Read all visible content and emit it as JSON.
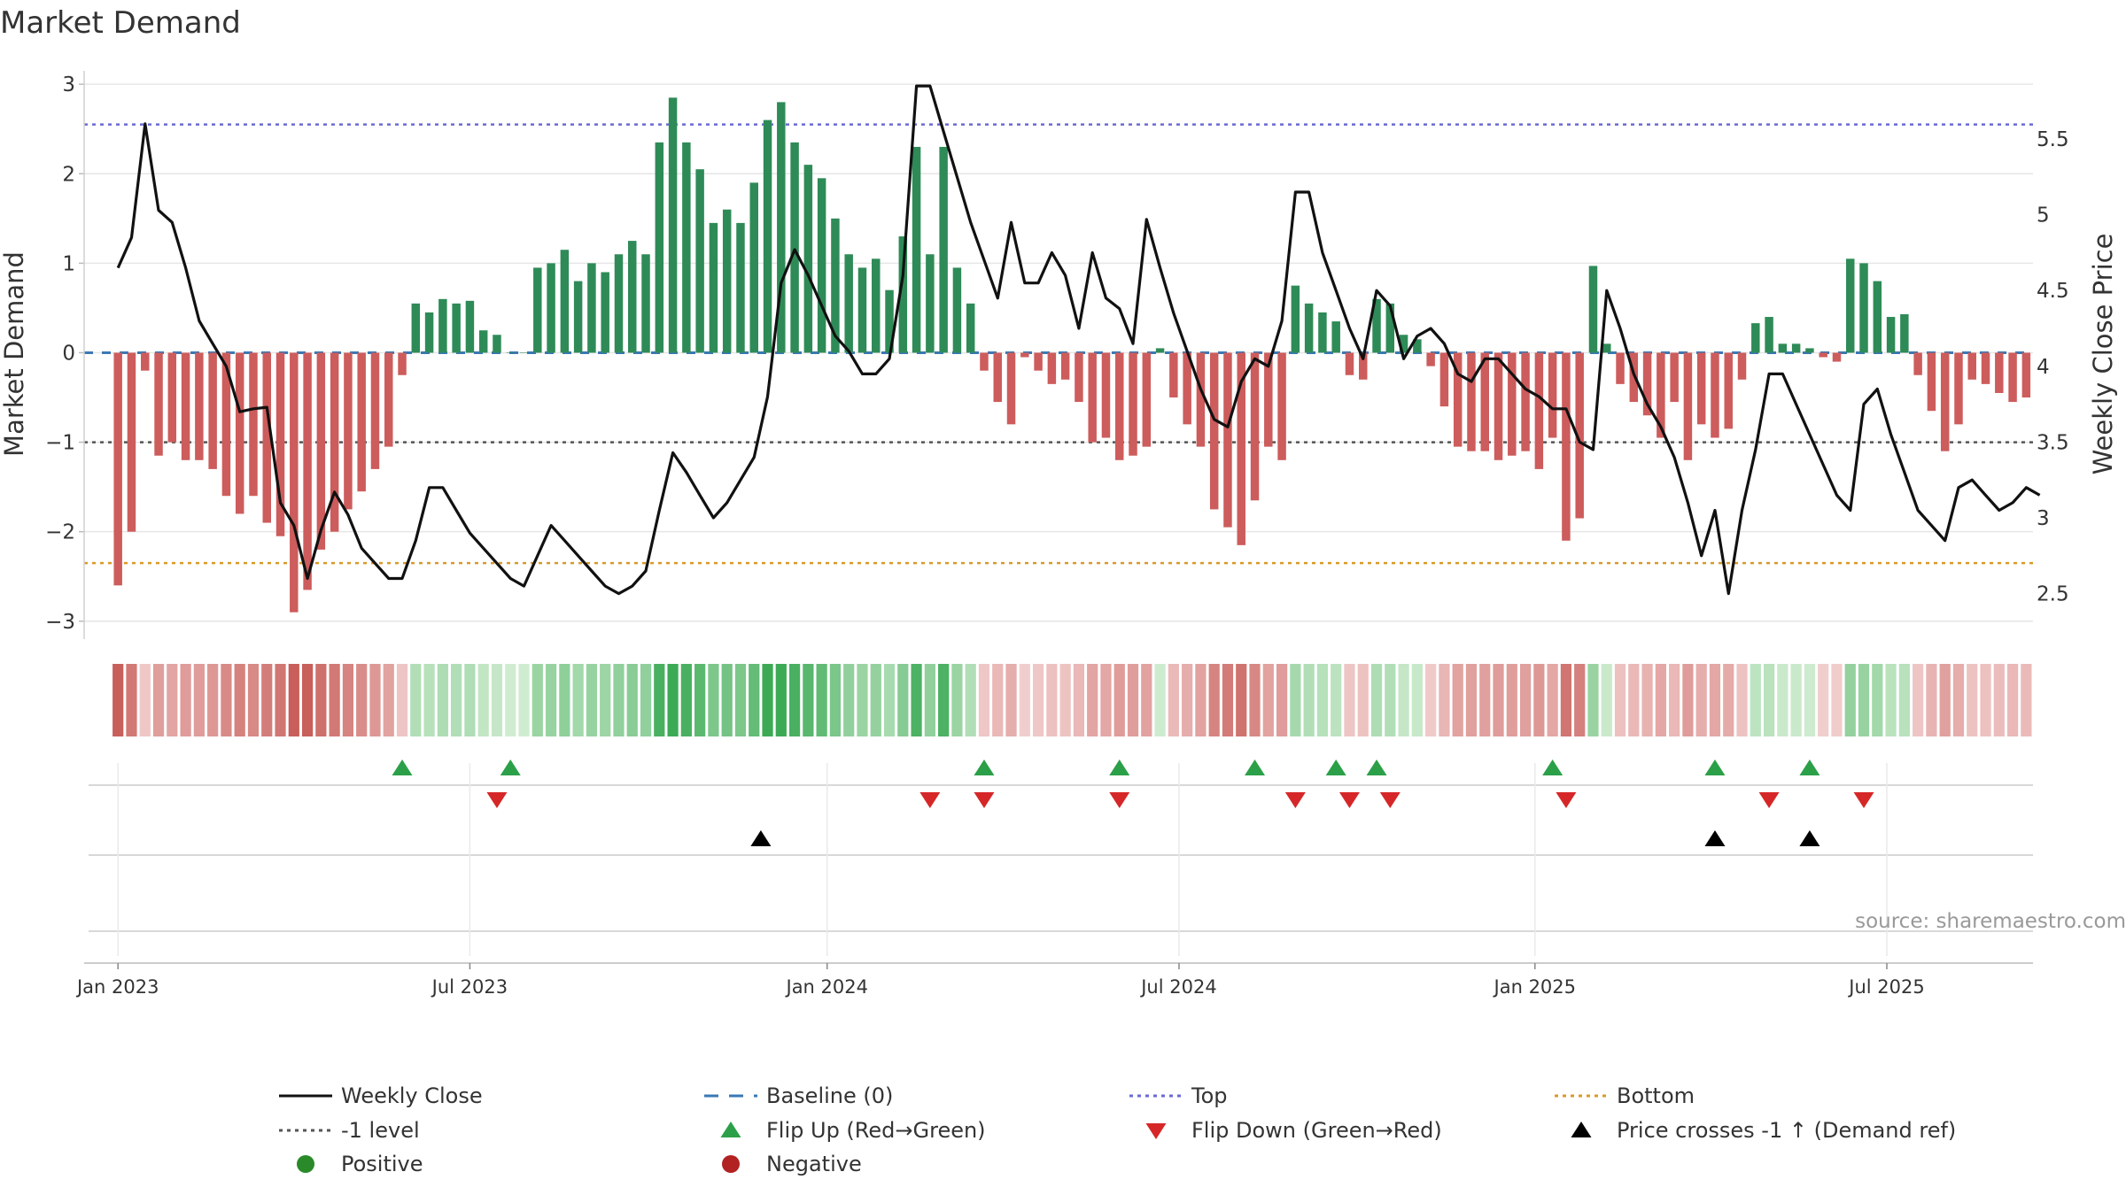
{
  "chart_data": {
    "type": "bar",
    "title": "Market Demand",
    "ylabel_left": "Market Demand",
    "ylabel_right": "Weekly Close Price",
    "ylim_left": [
      -3.2,
      3.15
    ],
    "ylim_right": [
      2.2,
      5.95
    ],
    "y_ticks_left": [
      3,
      2,
      1,
      0,
      -1,
      -2,
      -3
    ],
    "y_tick_labels_left": [
      "3",
      "2",
      "1",
      "0",
      "−1",
      "−2",
      "−3"
    ],
    "y_ticks_right": [
      5.5,
      5,
      4.5,
      4,
      3.5,
      3,
      2.5
    ],
    "y_tick_labels_right": [
      "5.5",
      "5",
      "4.5",
      "4",
      "3.5",
      "3",
      "2.5"
    ],
    "x_ticks": [
      0,
      26,
      52.4,
      78.4,
      104.7,
      130.7
    ],
    "x_tick_labels": [
      "Jan 2023",
      "Jul 2023",
      "Jan 2024",
      "Jul 2024",
      "Jan 2025",
      "Jul 2025"
    ],
    "x_range": [
      -2.5,
      141.5
    ],
    "reference_lines": {
      "top": 2.55,
      "minus_one": -1,
      "bottom": -2.35,
      "baseline": 0
    },
    "demand": [
      -2.6,
      -2.0,
      -0.2,
      -1.15,
      -1.0,
      -1.2,
      -1.2,
      -1.3,
      -1.6,
      -1.8,
      -1.6,
      -1.9,
      -2.05,
      -2.9,
      -2.65,
      -2.2,
      -2.0,
      -1.75,
      -1.55,
      -1.3,
      -1.05,
      -0.25,
      0.55,
      0.45,
      0.6,
      0.55,
      0.58,
      0.25,
      0.2,
      0.0,
      0.0,
      0.95,
      1.0,
      1.15,
      0.8,
      1.0,
      0.9,
      1.1,
      1.25,
      1.1,
      2.35,
      2.85,
      2.35,
      2.05,
      1.45,
      1.6,
      1.45,
      1.9,
      2.6,
      2.8,
      2.35,
      2.1,
      1.95,
      1.5,
      1.1,
      0.95,
      1.05,
      0.7,
      1.3,
      2.3,
      1.1,
      2.3,
      0.95,
      0.55,
      -0.2,
      -0.55,
      -0.8,
      -0.05,
      -0.2,
      -0.35,
      -0.3,
      -0.55,
      -1.0,
      -0.95,
      -1.2,
      -1.15,
      -1.05,
      0.05,
      -0.5,
      -0.8,
      -1.05,
      -1.75,
      -1.95,
      -2.15,
      -1.65,
      -1.05,
      -1.2,
      0.75,
      0.55,
      0.45,
      0.35,
      -0.25,
      -0.3,
      0.6,
      0.55,
      0.2,
      0.15,
      -0.15,
      -0.6,
      -1.05,
      -1.1,
      -1.1,
      -1.2,
      -1.15,
      -1.1,
      -1.3,
      -0.95,
      -2.1,
      -1.85,
      0.97,
      0.1,
      -0.35,
      -0.55,
      -0.7,
      -0.95,
      -0.55,
      -1.2,
      -0.8,
      -0.95,
      -0.85,
      -0.3,
      0.33,
      0.4,
      0.1,
      0.1,
      0.05,
      -0.05,
      -0.1,
      1.05,
      1.0,
      0.8,
      0.4,
      0.43,
      -0.25,
      -0.65,
      -1.1,
      -0.8,
      -0.3,
      -0.35,
      -0.45,
      -0.55,
      -0.5
    ],
    "price": [
      4.65,
      4.85,
      5.6,
      5.03,
      4.95,
      4.65,
      4.3,
      4.15,
      4.0,
      3.7,
      3.72,
      3.73,
      3.1,
      2.95,
      2.6,
      2.92,
      3.17,
      3.02,
      2.8,
      2.7,
      2.6,
      2.6,
      2.85,
      3.2,
      3.2,
      3.05,
      2.9,
      2.8,
      2.7,
      2.6,
      2.55,
      2.75,
      2.95,
      2.85,
      2.75,
      2.65,
      2.55,
      2.5,
      2.55,
      2.65,
      3.05,
      3.43,
      3.3,
      3.15,
      3.0,
      3.1,
      3.25,
      3.4,
      3.8,
      4.55,
      4.77,
      4.6,
      4.4,
      4.2,
      4.1,
      3.95,
      3.95,
      4.05,
      4.6,
      5.85,
      5.85,
      5.55,
      5.25,
      4.95,
      4.7,
      4.45,
      4.95,
      4.55,
      4.55,
      4.75,
      4.6,
      4.25,
      4.75,
      4.45,
      4.38,
      4.15,
      4.97,
      4.65,
      4.35,
      4.1,
      3.85,
      3.65,
      3.6,
      3.9,
      4.05,
      4.0,
      4.3,
      5.15,
      5.15,
      4.75,
      4.5,
      4.25,
      4.05,
      4.5,
      4.4,
      4.05,
      4.2,
      4.25,
      4.15,
      3.95,
      3.9,
      4.05,
      4.05,
      3.95,
      3.85,
      3.8,
      3.72,
      3.72,
      3.5,
      3.45,
      4.5,
      4.25,
      3.95,
      3.75,
      3.6,
      3.4,
      3.1,
      2.75,
      3.05,
      2.5,
      3.05,
      3.45,
      3.95,
      3.95,
      3.75,
      3.55,
      3.35,
      3.15,
      3.05,
      3.75,
      3.85,
      3.55,
      3.3,
      3.05,
      2.95,
      2.85,
      3.2,
      3.25,
      3.15,
      3.05,
      3.1,
      3.2,
      3.15
    ],
    "flip_up_weeks": [
      21,
      29,
      64,
      74,
      84,
      90,
      93,
      106,
      118,
      125
    ],
    "flip_down_weeks": [
      28,
      60,
      64,
      74,
      87,
      91,
      94,
      107,
      122,
      129
    ],
    "price_cross_weeks": [
      47.5,
      118,
      125
    ],
    "legend": [
      {
        "label": "Weekly Close",
        "symbol": "line",
        "color": "#111111"
      },
      {
        "label": "Baseline (0)",
        "symbol": "dash",
        "color": "#3a78b5"
      },
      {
        "label": "Top",
        "symbol": "dot",
        "color": "#6a6ad4"
      },
      {
        "label": "Bottom",
        "symbol": "dot",
        "color": "#d99a28"
      },
      {
        "label": "-1 level",
        "symbol": "dot",
        "color": "#555555"
      },
      {
        "label": "Flip Up (Red→Green)",
        "symbol": "triangle-up",
        "color": "#2ca048"
      },
      {
        "label": "Flip Down (Green→Red)",
        "symbol": "triangle-down",
        "color": "#d62728"
      },
      {
        "label": "Price crosses -1 ↑ (Demand ref)",
        "symbol": "triangle-up",
        "color": "#000000"
      },
      {
        "label": "Positive",
        "symbol": "circle",
        "color": "#2a8a2a"
      },
      {
        "label": "Negative",
        "symbol": "circle",
        "color": "#b22222"
      }
    ],
    "source": "source: sharemaestro.com",
    "colors": {
      "positive_bar": "#2e8b57",
      "negative_bar": "#cd5c5c",
      "price_line": "#111111",
      "baseline": "#3a78b5",
      "top_line": "#6a6ad4",
      "bottom_line": "#d99a28",
      "minus_one_line": "#555555",
      "grid": "#e6e6e6",
      "flip_up": "#2ca048",
      "flip_down": "#d62728",
      "cross": "#000000"
    }
  }
}
